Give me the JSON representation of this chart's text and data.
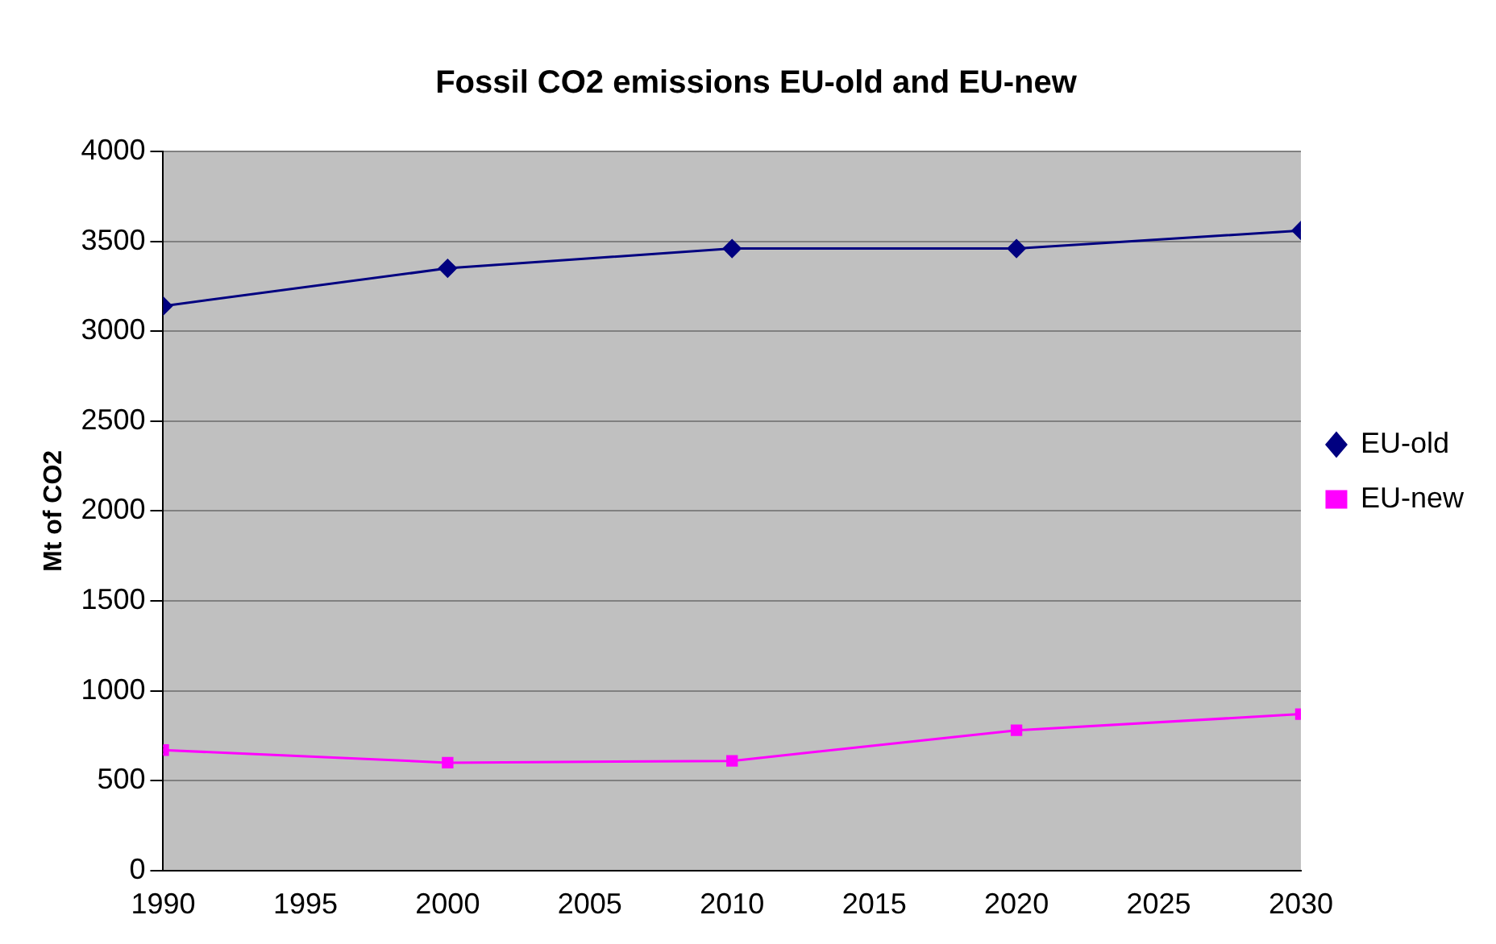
{
  "chart_data": {
    "type": "line",
    "title": "Fossil CO2 emissions EU-old and EU-new",
    "ylabel": "Mt of CO2",
    "x": [
      1990,
      2000,
      2010,
      2020,
      2030
    ],
    "series": [
      {
        "name": "EU-old",
        "color": "#000080",
        "marker": "diamond",
        "values": [
          3140,
          3350,
          3460,
          3460,
          3560
        ]
      },
      {
        "name": "EU-new",
        "color": "#ff00ff",
        "marker": "square",
        "values": [
          670,
          600,
          610,
          780,
          870
        ]
      }
    ],
    "xlim": [
      1990,
      2030
    ],
    "xticks": [
      1990,
      1995,
      2000,
      2005,
      2010,
      2015,
      2020,
      2025,
      2030
    ],
    "ylim": [
      0,
      4000
    ],
    "yticks": [
      0,
      500,
      1000,
      1500,
      2000,
      2500,
      3000,
      3500,
      4000
    ],
    "grid": "y",
    "legend": "right",
    "line_style": "solid"
  }
}
